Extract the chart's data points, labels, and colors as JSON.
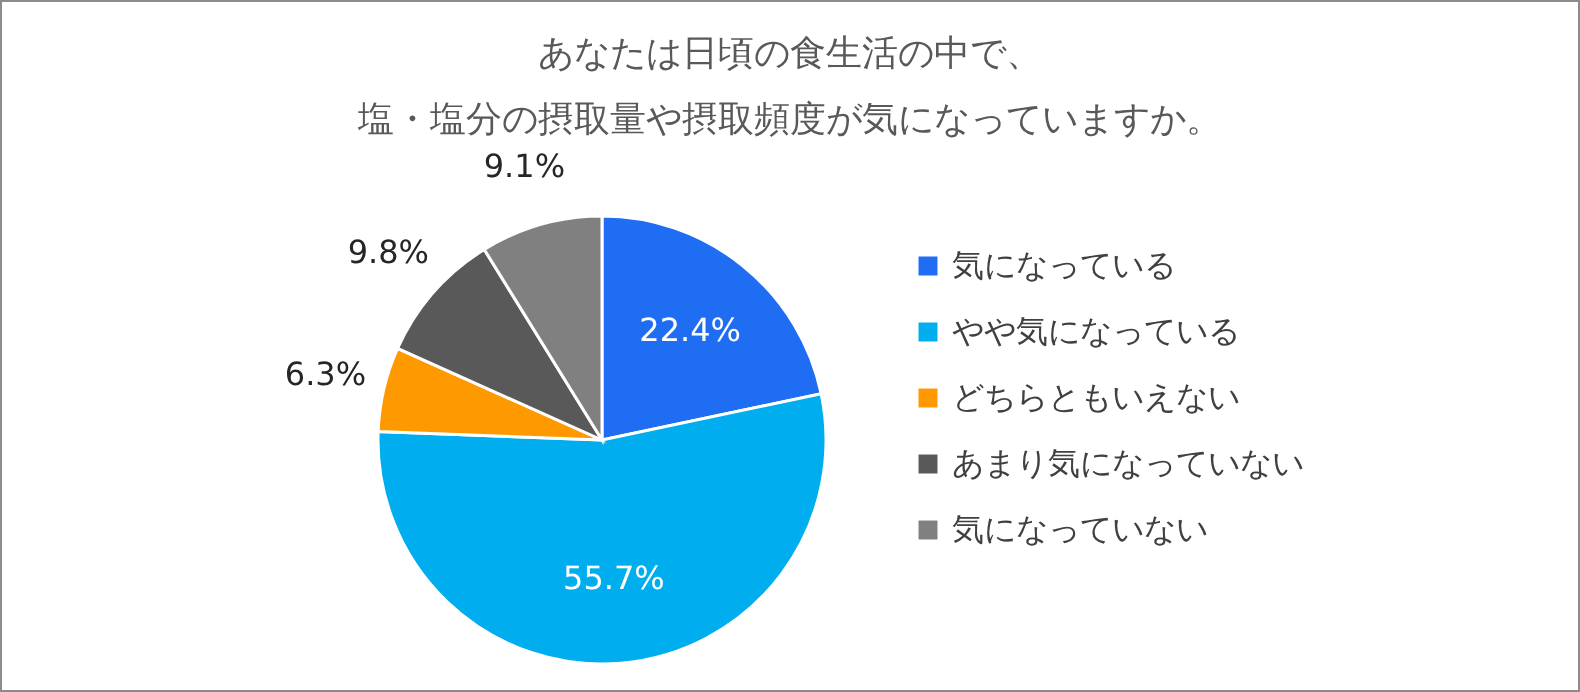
{
  "chart_data": {
    "type": "pie",
    "title": [
      "あなたは日頃の食生活の中で、",
      "塩・塩分の摂取量や摂取頻度が気になっていますか。"
    ],
    "categories": [
      "気になっている",
      "やや気になっている",
      "どちらともいえない",
      "あまり気になっていない",
      "気になっていない"
    ],
    "values": [
      22.4,
      55.7,
      6.3,
      9.8,
      9.1
    ],
    "value_labels": [
      "22.4%",
      "55.7%",
      "6.3%",
      "9.8%",
      "9.1%"
    ],
    "colors": [
      "#1f6df2",
      "#00aeef",
      "#ff9900",
      "#595959",
      "#808080"
    ],
    "legend": "right"
  }
}
